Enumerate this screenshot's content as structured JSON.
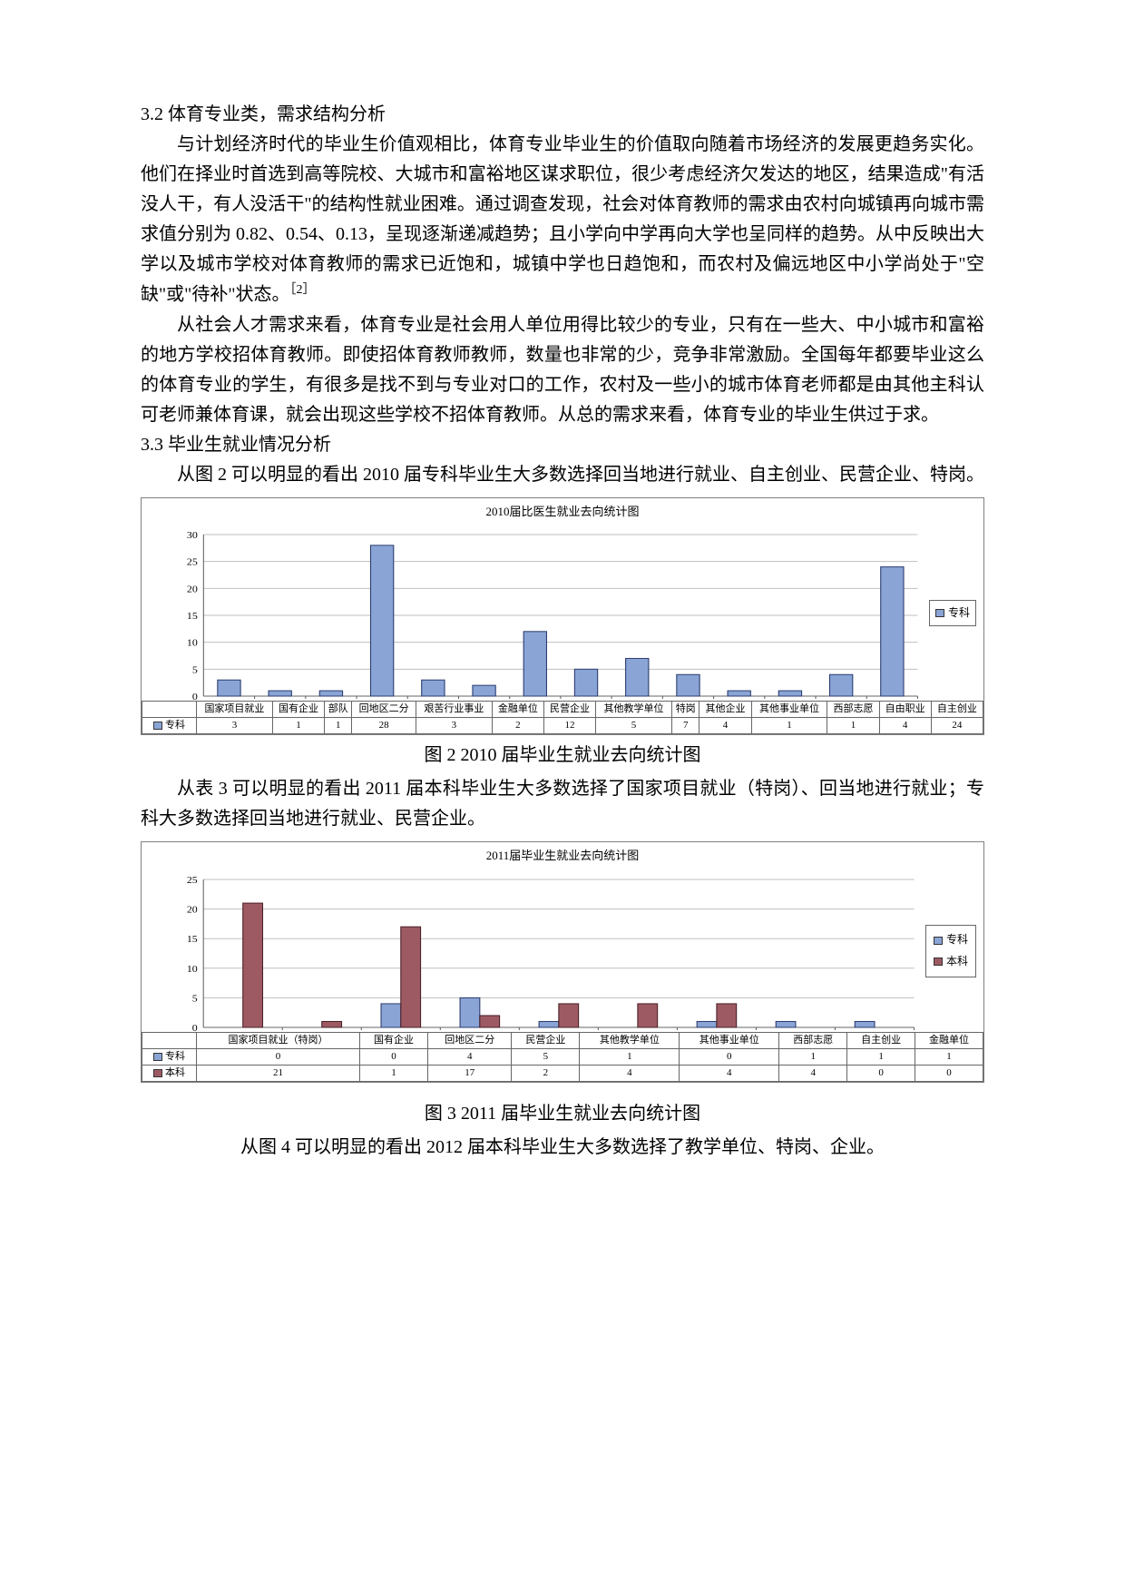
{
  "headings": {
    "s32": "3.2  体育专业类，需求结构分析",
    "s33": "3.3  毕业生就业情况分析"
  },
  "paragraphs": {
    "p1": "与计划经济时代的毕业生价值观相比，体育专业毕业生的价值取向随着市场经济的发展更趋务实化。他们在择业时首选到高等院校、大城市和富裕地区谋求职位，很少考虑经济欠发达的地区，结果造成\"有活没人干，有人没活干\"的结构性就业困难。通过调查发现，社会对体育教师的需求由农村向城镇再向城市需求值分别为 0.82、0.54、0.13，呈现逐渐递减趋势；且小学向中学再向大学也呈同样的趋势。从中反映出大学以及城市学校对体育教师的需求已近饱和，城镇中学也日趋饱和，而农村及偏远地区中小学尚处于\"空缺\"或\"待补\"状态。",
    "p1_cite": "［2］",
    "p2": "从社会人才需求来看，体育专业是社会用人单位用得比较少的专业，只有在一些大、中小城市和富裕的地方学校招体育教师。即使招体育教师教师，数量也非常的少，竞争非常激励。全国每年都要毕业这么的体育专业的学生，有很多是找不到与专业对口的工作，农村及一些小的城市体育老师都是由其他主科认可老师兼体育课，就会出现这些学校不招体育教师。从总的需求来看，体育专业的毕业生供过于求。",
    "p3": "从图 2 可以明显的看出 2010 届专科毕业生大多数选择回当地进行就业、自主创业、民营企业、特岗。",
    "p4": "从表 3 可以明显的看出 2011 届本科毕业生大多数选择了国家项目就业（特岗）、回当地进行就业；专科大多数选择回当地进行就业、民营企业。",
    "p5": "从图 4 可以明显的看出 2012 届本科毕业生大多数选择了教学单位、特岗、企业。"
  },
  "captions": {
    "fig2": "图 2 2010 届毕业生就业去向统计图",
    "fig3": "图 3 2011 届毕业生就业去向统计图"
  },
  "chart1": {
    "type": "bar",
    "title": "2010届比医生就业去向统计图",
    "categories": [
      "国家项目就业",
      "国有企业",
      "部队",
      "回地区二分",
      "艰苦行业事业",
      "金融单位",
      "民营企业",
      "其他教学单位",
      "特岗",
      "其他企业",
      "其他事业单位",
      "西部志愿",
      "自由职业",
      "自主创业"
    ],
    "series_label": "专科",
    "values": [
      3,
      1,
      1,
      28,
      3,
      2,
      12,
      5,
      7,
      4,
      1,
      1,
      4,
      24
    ],
    "ylim": [
      0,
      30
    ],
    "ytick_step": 5,
    "bar_fill": "#8aa4d6",
    "bar_stroke": "#2a3c6e",
    "grid_color": "#bfbfbf",
    "axis_color": "#666666",
    "label_fontsize": 11,
    "title_fontsize": 13,
    "background": "#ffffff",
    "legend_swatch": "#8aa4d6"
  },
  "chart2": {
    "type": "bar-grouped",
    "title": "2011届毕业生就业去向统计图",
    "categories": [
      "国家项目就业（特岗）",
      "国有企业",
      "回地区二分",
      "民营企业",
      "其他教学单位",
      "其他事业单位",
      "西部志愿",
      "自主创业",
      "金融单位"
    ],
    "series": [
      {
        "label": "专科",
        "values": [
          0,
          0,
          4,
          5,
          1,
          0,
          1,
          1,
          1
        ],
        "fill": "#8aa4d6",
        "stroke": "#2a3c6e"
      },
      {
        "label": "本科",
        "values": [
          21,
          1,
          17,
          2,
          4,
          4,
          4,
          0,
          0
        ],
        "fill": "#9e5a63",
        "stroke": "#4a2027"
      }
    ],
    "ylim": [
      0,
      25
    ],
    "ytick_step": 5,
    "grid_color": "#bfbfbf",
    "axis_color": "#666666",
    "label_fontsize": 11,
    "title_fontsize": 13,
    "background": "#ffffff"
  }
}
